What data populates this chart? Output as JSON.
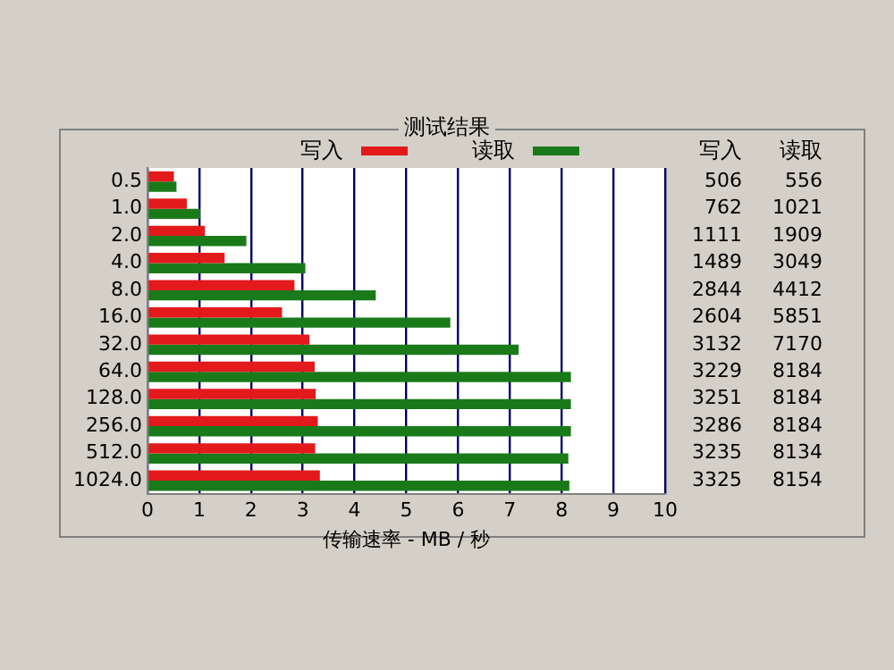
{
  "chart_data": {
    "type": "bar",
    "orientation": "horizontal",
    "title": "测试结果",
    "xlabel": "传输速率 - MB / 秒",
    "categories": [
      "0.5",
      "1.0",
      "2.0",
      "4.0",
      "8.0",
      "16.0",
      "32.0",
      "64.0",
      "128.0",
      "256.0",
      "512.0",
      "1024.0"
    ],
    "series": [
      {
        "name": "写入",
        "color": "#e31a1c",
        "values": [
          0.51,
          0.76,
          1.11,
          1.49,
          2.84,
          2.6,
          3.13,
          3.23,
          3.25,
          3.29,
          3.24,
          3.33
        ]
      },
      {
        "name": "读取",
        "color": "#1a7a1a",
        "values": [
          0.56,
          1.02,
          1.91,
          3.05,
          4.41,
          5.85,
          7.17,
          8.18,
          8.18,
          8.18,
          8.13,
          8.15
        ]
      }
    ],
    "annotations": [
      "写入",
      "读取",
      "506",
      "556",
      "762",
      "1021",
      "1111",
      "1909",
      "1489",
      "3049",
      "2844",
      "4412",
      "2604",
      "5851",
      "3132",
      "7170",
      "3229",
      "8184",
      "3251",
      "8184",
      "3286",
      "8184",
      "3235",
      "8134",
      "3325",
      "8154"
    ],
    "xlim": [
      0,
      10
    ],
    "xticks": [
      0,
      1,
      2,
      3,
      4,
      5,
      6,
      7,
      8,
      9,
      10
    ],
    "grid": "x",
    "legend": "top"
  }
}
